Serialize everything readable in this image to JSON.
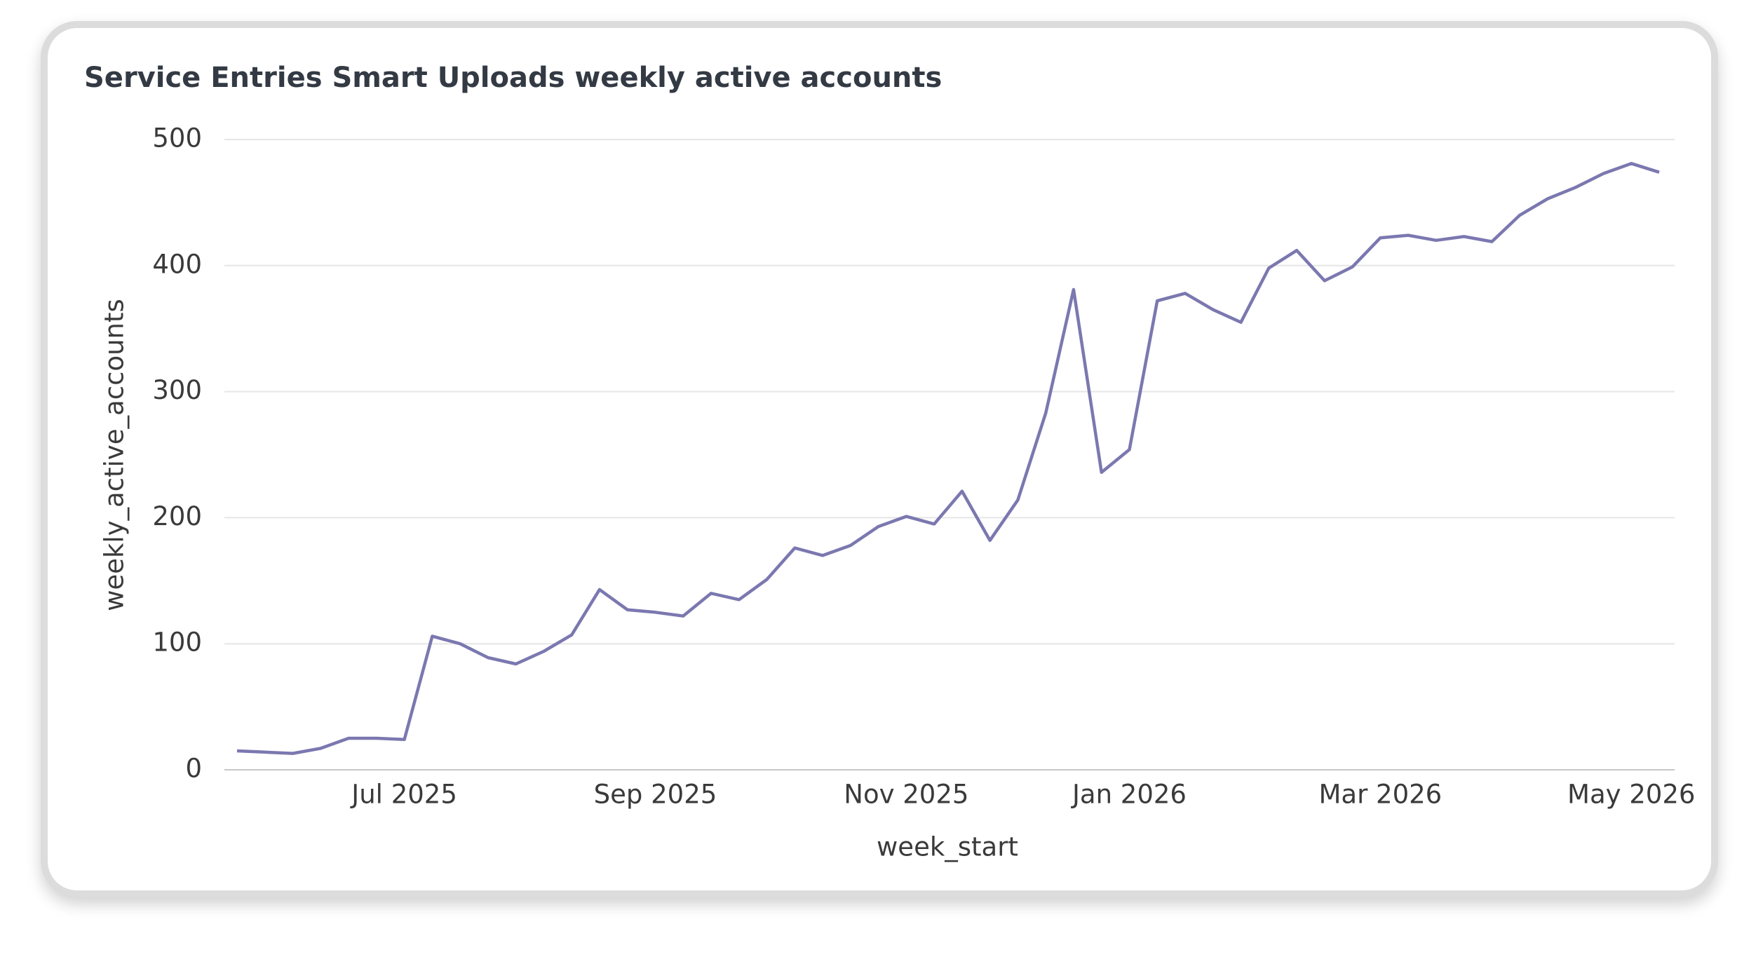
{
  "chart_data": {
    "type": "line",
    "title": "Service Entries Smart Uploads weekly active accounts",
    "x_label": "week_start",
    "y_label": "weekly_active_accounts",
    "categories": [
      null,
      null,
      null,
      null,
      null,
      null,
      "Jul 2025",
      null,
      null,
      null,
      null,
      null,
      null,
      null,
      null,
      "Sep 2025",
      null,
      null,
      null,
      null,
      null,
      null,
      null,
      null,
      "Nov 2025",
      null,
      null,
      null,
      null,
      null,
      null,
      null,
      "Jan 2026",
      null,
      null,
      null,
      null,
      null,
      null,
      null,
      null,
      "Mar 2026",
      null,
      null,
      null,
      null,
      null,
      null,
      null,
      null,
      "May 2026",
      null
    ],
    "series": [
      {
        "name": "weekly_active_accounts",
        "color": "#7b78b0",
        "values": [
          15,
          14,
          13,
          17,
          25,
          25,
          24,
          106,
          100,
          89,
          84,
          94,
          107,
          143,
          127,
          125,
          122,
          140,
          135,
          151,
          176,
          170,
          178,
          193,
          201,
          195,
          221,
          182,
          214,
          283,
          381,
          236,
          254,
          372,
          378,
          365,
          355,
          398,
          412,
          388,
          399,
          422,
          424,
          420,
          423,
          419,
          440,
          453,
          462,
          473,
          481,
          474
        ]
      }
    ],
    "ylim": [
      0,
      500
    ],
    "yticks": [
      0,
      100,
      200,
      300,
      400,
      500
    ],
    "grid": true
  }
}
